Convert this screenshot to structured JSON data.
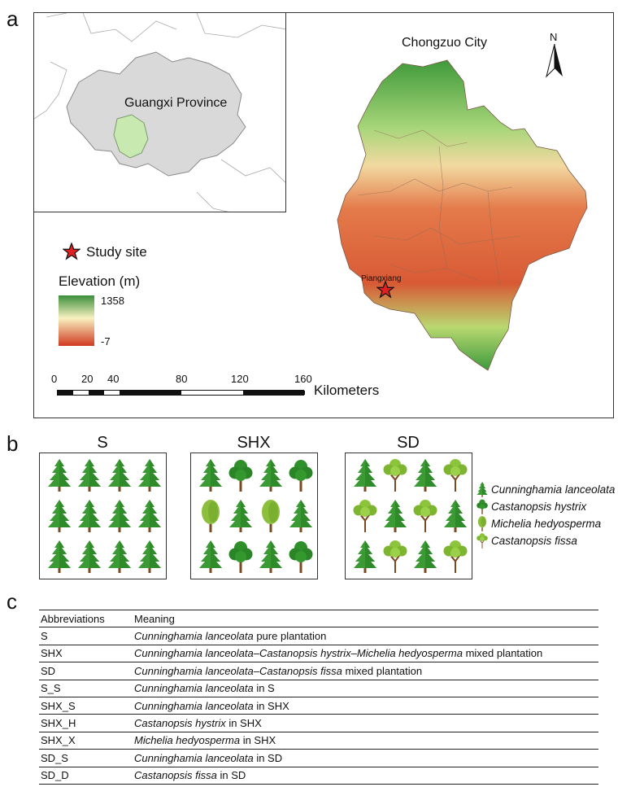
{
  "panels": {
    "a": "a",
    "b": "b",
    "c": "c"
  },
  "map": {
    "region_label": "Chongzuo City",
    "north_label": "N",
    "inset_label": "Guangxi Province",
    "site_label": "Piangxiang",
    "legend_site": "Study site",
    "legend_elevation_title": "Elevation (m)",
    "elevation_max": "1358",
    "elevation_min": "-7",
    "scale_ticks": [
      "0",
      "20",
      "40",
      "80",
      "120",
      "160"
    ],
    "scale_unit": "Kilometers",
    "colors": {
      "high": "#3b8f3a",
      "mid": "#f8f1c0",
      "low": "#d03a20",
      "study_star": "#e02020"
    }
  },
  "plots": [
    {
      "title": "S",
      "layout": [
        "c",
        "c",
        "c",
        "c",
        "c",
        "c",
        "c",
        "c",
        "c",
        "c",
        "c",
        "c"
      ]
    },
    {
      "title": "SHX",
      "layout": [
        "c",
        "h",
        "c",
        "h",
        "m",
        "c",
        "m",
        "c",
        "c",
        "h",
        "c",
        "h"
      ]
    },
    {
      "title": "SD",
      "layout": [
        "c",
        "f",
        "c",
        "f",
        "f",
        "c",
        "f",
        "c",
        "c",
        "f",
        "c",
        "f"
      ]
    }
  ],
  "species_legend": [
    {
      "icon": "cunninghamia-icon",
      "genus": "Cunninghamia",
      "epithet": "lanceolata"
    },
    {
      "icon": "castanopsis-hystrix-icon",
      "genus": "Castanopsis",
      "epithet": "hystrix"
    },
    {
      "icon": "michelia-icon",
      "genus": "Michelia",
      "epithet": "hedyosperma"
    },
    {
      "icon": "castanopsis-fissa-icon",
      "genus": "Castanopsis",
      "epithet": "fissa"
    }
  ],
  "table": {
    "headers": [
      "Abbreviations",
      "Meaning"
    ],
    "rows": [
      {
        "abbr": "S",
        "italic": "Cunninghamia lanceolata",
        "rest": " pure plantation"
      },
      {
        "abbr": "SHX",
        "italic": "Cunninghamia lanceolata–Castanopsis hystrix–Michelia hedyosperma",
        "rest": " mixed plantation"
      },
      {
        "abbr": "SD",
        "italic": "Cunninghamia lanceolata–Castanopsis fissa",
        "rest": " mixed plantation"
      },
      {
        "abbr": "S_S",
        "italic": "Cunninghamia lanceolata",
        "rest": " in S"
      },
      {
        "abbr": "SHX_S",
        "italic": "Cunninghamia lanceolata",
        "rest": " in SHX"
      },
      {
        "abbr": "SHX_H",
        "italic": "Castanopsis hystrix",
        "rest": " in SHX"
      },
      {
        "abbr": "SHX_X",
        "italic": "Michelia hedyosperma",
        "rest": " in SHX"
      },
      {
        "abbr": "SD_S",
        "italic": "Cunninghamia lanceolata",
        "rest": " in SD"
      },
      {
        "abbr": "SD_D",
        "italic": "Castanopsis fissa",
        "rest": " in SD"
      }
    ]
  }
}
